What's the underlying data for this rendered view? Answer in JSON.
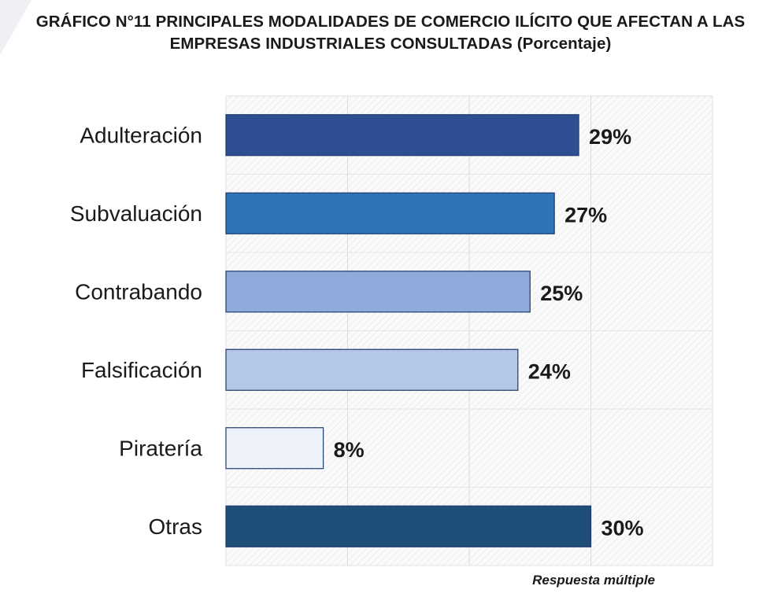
{
  "title_main": "GRÁFICO N°11 PRINCIPALES MODALIDADES DE COMERCIO ILÍCITO QUE AFECTAN A LAS EMPRESAS INDUSTRIALES CONSULTADAS",
  "title_unit": "(Porcentaje)",
  "note": "Respuesta múltiple",
  "chart_data": {
    "type": "bar",
    "orientation": "horizontal",
    "title": "GRÁFICO N°11 PRINCIPALES MODALIDADES DE COMERCIO ILÍCITO QUE AFECTAN A LAS EMPRESAS INDUSTRIALES CONSULTADAS (Porcentaje)",
    "categories": [
      "Adulteración",
      "Subvaluación",
      "Contrabando",
      "Falsificación",
      "Piratería",
      "Otras"
    ],
    "values": [
      29,
      27,
      25,
      24,
      8,
      30
    ],
    "value_labels": [
      "29%",
      "27%",
      "25%",
      "24%",
      "8%",
      "30%"
    ],
    "colors": [
      "#2e4f93",
      "#2e75b6",
      "#8eaadb",
      "#b4c7e7",
      "#edf1fa",
      "#1f4e79"
    ],
    "xlim": [
      0,
      40
    ],
    "grid": true,
    "legend": "none"
  }
}
